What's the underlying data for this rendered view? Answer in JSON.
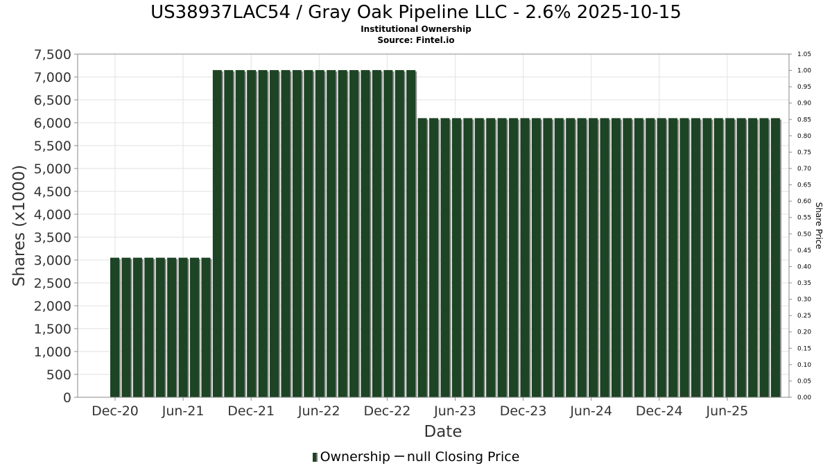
{
  "header": {
    "title": "US38937LAC54 / Gray Oak Pipeline LLC - 2.6% 2025-10-15",
    "subtitle": "Institutional Ownership",
    "source": "Source: Fintel.io"
  },
  "legend": {
    "ownership_label": "Ownership",
    "price_label": "null Closing Price"
  },
  "colors": {
    "bar": "#1d4424",
    "bar_shadow": "#8a8a8a",
    "grid": "#e2e2e2",
    "axis": "#888888"
  },
  "chart_data": {
    "type": "bar",
    "title": "US38937LAC54 / Gray Oak Pipeline LLC - 2.6% 2025-10-15",
    "subtitle": "Institutional Ownership",
    "xlabel": "Date",
    "ylabel": "Shares (x1000)",
    "y2label": "Share Price",
    "ylim": [
      0,
      7500
    ],
    "y2lim": [
      0,
      1.05
    ],
    "yticks": [
      "0",
      "500",
      "1,000",
      "1,500",
      "2,000",
      "2,500",
      "3,000",
      "3,500",
      "4,000",
      "4,500",
      "5,000",
      "5,500",
      "6,000",
      "6,500",
      "7,000",
      "7,500"
    ],
    "y2ticks": [
      "0.00",
      "0.05",
      "0.10",
      "0.15",
      "0.20",
      "0.25",
      "0.30",
      "0.35",
      "0.40",
      "0.45",
      "0.50",
      "0.55",
      "0.60",
      "0.65",
      "0.70",
      "0.75",
      "0.80",
      "0.85",
      "0.90",
      "0.95",
      "1.00",
      "1.05"
    ],
    "xticks": [
      "Dec-20",
      "Jun-21",
      "Dec-21",
      "Jun-22",
      "Dec-22",
      "Jun-23",
      "Dec-23",
      "Jun-24",
      "Dec-24",
      "Jun-25"
    ],
    "x_start": "2020-10",
    "x_end": "2025-10",
    "grid": true,
    "legend_position": "bottom",
    "series": [
      {
        "name": "Ownership",
        "values": [
          3050,
          3050,
          3050,
          3050,
          3050,
          3050,
          3050,
          3050,
          3050,
          7150,
          7150,
          7150,
          7150,
          7150,
          7150,
          7150,
          7150,
          7150,
          7150,
          7150,
          7150,
          7150,
          7150,
          7150,
          7150,
          7150,
          7150,
          6100,
          6100,
          6100,
          6100,
          6100,
          6100,
          6100,
          6100,
          6100,
          6100,
          6100,
          6100,
          6100,
          6100,
          6100,
          6100,
          6100,
          6100,
          6100,
          6100,
          6100,
          6100,
          6100,
          6100,
          6100,
          6100,
          6100,
          6100,
          6100,
          6100,
          6100,
          6100
        ]
      },
      {
        "name": "null Closing Price",
        "values": []
      }
    ]
  }
}
